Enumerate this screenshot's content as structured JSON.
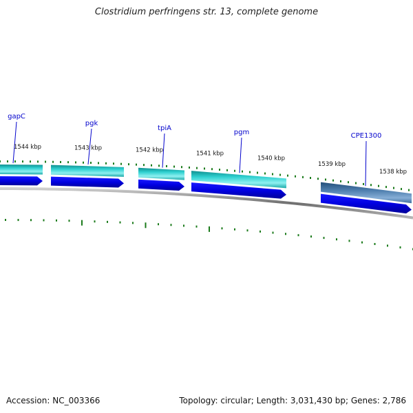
{
  "title": "Clostridium perfringens str. 13, complete genome",
  "footer": {
    "accession": "Accession: NC_003366",
    "summary": "Topology: circular; Length: 3,031,430 bp; Genes: 2,786"
  },
  "colors": {
    "background": "#ffffff",
    "label_text": "#0000cc",
    "callout_line": "#0000cc",
    "tick_green": "#1a7a1a",
    "gene_cyan": "#22c6c6",
    "gene_cyan_dark": "#0f8f8f",
    "gene_steel": "#3f6f9f",
    "cds_blue": "#0000e6",
    "backbone": "#888888"
  },
  "ruler": {
    "labels": [
      "1544 kbp",
      "1543 kbp",
      "1542 kbp",
      "1541 kbp",
      "1540 kbp",
      "1539 kbp",
      "1538 kbp"
    ]
  },
  "genes": [
    {
      "name": "gapC",
      "color": "cyan"
    },
    {
      "name": "pgk",
      "color": "cyan"
    },
    {
      "name": "tpiA",
      "color": "cyan"
    },
    {
      "name": "pgm",
      "color": "cyan"
    },
    {
      "name": "CPE1300",
      "color": "steel"
    }
  ]
}
